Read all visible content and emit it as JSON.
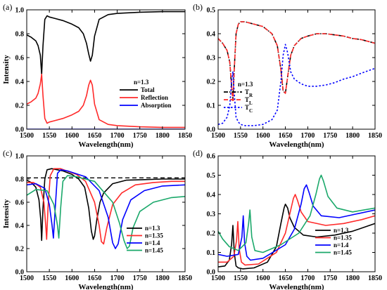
{
  "chart_data": [
    {
      "panel": "(a)",
      "type": "line",
      "xlabel": "Wavelength(nm)",
      "ylabel": "Intensity",
      "xlim": [
        1500,
        1850
      ],
      "ylim": [
        0,
        1.0
      ],
      "xticks": [
        1500,
        1550,
        1600,
        1650,
        1700,
        1750,
        1800,
        1850
      ],
      "yticks": [
        0,
        0.2,
        0.4,
        0.6,
        0.8,
        1.0
      ],
      "tick_labels_y": [
        "0.0",
        "0.2",
        "0.4",
        "0.6",
        "0.8",
        "1.0"
      ],
      "legend_title": "n=1.3",
      "legend_position": "right",
      "series": [
        {
          "name": "Total",
          "color": "#000000",
          "dash": "solid",
          "x": [
            1500,
            1510,
            1520,
            1525,
            1530,
            1533,
            1536,
            1540,
            1545,
            1550,
            1560,
            1580,
            1600,
            1615,
            1625,
            1632,
            1637,
            1641,
            1645,
            1650,
            1660,
            1680,
            1700,
            1750,
            1800,
            1850
          ],
          "y": [
            0.79,
            0.77,
            0.74,
            0.7,
            0.62,
            0.46,
            0.7,
            0.92,
            0.95,
            0.94,
            0.93,
            0.91,
            0.88,
            0.85,
            0.8,
            0.72,
            0.63,
            0.57,
            0.62,
            0.78,
            0.92,
            0.96,
            0.97,
            0.98,
            0.985,
            0.985
          ]
        },
        {
          "name": "Reflection",
          "color": "#ff2a2a",
          "dash": "solid",
          "x": [
            1500,
            1510,
            1520,
            1525,
            1530,
            1533,
            1536,
            1540,
            1545,
            1550,
            1560,
            1580,
            1600,
            1615,
            1625,
            1632,
            1637,
            1641,
            1645,
            1650,
            1660,
            1680,
            1700,
            1750,
            1800,
            1850
          ],
          "y": [
            0.21,
            0.23,
            0.26,
            0.3,
            0.38,
            0.46,
            0.28,
            0.09,
            0.05,
            0.06,
            0.07,
            0.09,
            0.12,
            0.15,
            0.2,
            0.28,
            0.37,
            0.41,
            0.37,
            0.21,
            0.08,
            0.04,
            0.03,
            0.02,
            0.015,
            0.015
          ]
        },
        {
          "name": "Absorption",
          "color": "#0000ff",
          "dash": "solid",
          "x": [
            1500,
            1850
          ],
          "y": [
            0.0,
            0.0
          ]
        }
      ]
    },
    {
      "panel": "(b)",
      "type": "line",
      "xlabel": "Wavelength(nm)",
      "ylabel": "",
      "xlim": [
        1500,
        1850
      ],
      "ylim": [
        0,
        0.5
      ],
      "xticks": [
        1500,
        1550,
        1600,
        1650,
        1700,
        1750,
        1800,
        1850
      ],
      "yticks": [
        0,
        0.1,
        0.2,
        0.3,
        0.4,
        0.5
      ],
      "tick_labels_y": [
        "0.0",
        "0.1",
        "0.2",
        "0.3",
        "0.4",
        "0.5"
      ],
      "legend_title": "n=1.3",
      "legend_position": "bottom-left",
      "series": [
        {
          "name": "T",
          "sub": "R",
          "color": "#000000",
          "dash": "dashdot",
          "x": [
            1500,
            1510,
            1520,
            1526,
            1530,
            1533,
            1536,
            1540,
            1545,
            1550,
            1560,
            1580,
            1600,
            1620,
            1632,
            1640,
            1645,
            1650,
            1655,
            1662,
            1670,
            1685,
            1700,
            1720,
            1740,
            1760,
            1780,
            1800,
            1820,
            1850
          ],
          "y": [
            0.38,
            0.36,
            0.33,
            0.28,
            0.18,
            0.12,
            0.25,
            0.4,
            0.44,
            0.45,
            0.45,
            0.44,
            0.43,
            0.4,
            0.35,
            0.25,
            0.16,
            0.15,
            0.22,
            0.31,
            0.35,
            0.38,
            0.39,
            0.4,
            0.4,
            0.395,
            0.39,
            0.38,
            0.375,
            0.36
          ]
        },
        {
          "name": "T",
          "sub": "L",
          "color": "#ff2a2a",
          "dash": "dashed",
          "x": [
            1500,
            1510,
            1520,
            1526,
            1530,
            1533,
            1536,
            1540,
            1545,
            1550,
            1560,
            1580,
            1600,
            1620,
            1632,
            1640,
            1645,
            1650,
            1655,
            1662,
            1670,
            1685,
            1700,
            1720,
            1740,
            1760,
            1780,
            1800,
            1820,
            1850
          ],
          "y": [
            0.38,
            0.36,
            0.33,
            0.28,
            0.18,
            0.12,
            0.25,
            0.4,
            0.44,
            0.45,
            0.45,
            0.44,
            0.43,
            0.4,
            0.35,
            0.25,
            0.16,
            0.15,
            0.22,
            0.31,
            0.35,
            0.38,
            0.39,
            0.4,
            0.4,
            0.395,
            0.39,
            0.38,
            0.375,
            0.36
          ]
        },
        {
          "name": "T",
          "sub": "C",
          "color": "#0000ff",
          "dash": "dotted",
          "x": [
            1500,
            1510,
            1520,
            1526,
            1530,
            1533,
            1536,
            1540,
            1545,
            1550,
            1560,
            1580,
            1600,
            1620,
            1632,
            1640,
            1645,
            1650,
            1655,
            1662,
            1670,
            1685,
            1700,
            1720,
            1740,
            1760,
            1780,
            1800,
            1820,
            1850
          ],
          "y": [
            0.02,
            0.025,
            0.05,
            0.1,
            0.2,
            0.24,
            0.15,
            0.05,
            0.03,
            0.02,
            0.015,
            0.015,
            0.02,
            0.04,
            0.08,
            0.2,
            0.31,
            0.355,
            0.32,
            0.24,
            0.21,
            0.19,
            0.18,
            0.18,
            0.185,
            0.195,
            0.21,
            0.22,
            0.235,
            0.255
          ]
        }
      ]
    },
    {
      "panel": "(c)",
      "type": "line",
      "xlabel": "Wavelength(nm)",
      "ylabel": "Intensity",
      "xlim": [
        1500,
        1850
      ],
      "ylim": [
        0,
        1.0
      ],
      "xticks": [
        1500,
        1550,
        1600,
        1650,
        1700,
        1750,
        1800,
        1850
      ],
      "yticks": [
        0,
        0.2,
        0.4,
        0.6,
        0.8,
        1.0
      ],
      "tick_labels_y": [
        "0.0",
        "0.2",
        "0.4",
        "0.6",
        "0.8",
        "1.0"
      ],
      "reference_line": {
        "y": 0.81,
        "color": "#000000",
        "dash": "dashed"
      },
      "legend_position": "bottom-center",
      "series": [
        {
          "name": "n=1.3",
          "color": "#000000",
          "dash": "solid",
          "x": [
            1500,
            1510,
            1520,
            1527,
            1531,
            1533,
            1536,
            1540,
            1545,
            1555,
            1580,
            1600,
            1615,
            1628,
            1637,
            1643,
            1647,
            1650,
            1655,
            1662,
            1670,
            1690,
            1720,
            1760,
            1800,
            1850
          ],
          "y": [
            0.79,
            0.77,
            0.73,
            0.62,
            0.45,
            0.27,
            0.55,
            0.8,
            0.88,
            0.89,
            0.87,
            0.84,
            0.8,
            0.73,
            0.55,
            0.35,
            0.28,
            0.31,
            0.45,
            0.6,
            0.68,
            0.76,
            0.79,
            0.795,
            0.8,
            0.8
          ]
        },
        {
          "name": "n=1.35",
          "color": "#ff2a2a",
          "dash": "solid",
          "x": [
            1500,
            1515,
            1530,
            1538,
            1542,
            1544,
            1547,
            1552,
            1560,
            1575,
            1610,
            1630,
            1650,
            1660,
            1665,
            1670,
            1677,
            1690,
            1710,
            1740,
            1780,
            1820,
            1850
          ],
          "y": [
            0.77,
            0.77,
            0.73,
            0.6,
            0.4,
            0.28,
            0.55,
            0.83,
            0.89,
            0.89,
            0.84,
            0.78,
            0.6,
            0.4,
            0.26,
            0.24,
            0.38,
            0.58,
            0.68,
            0.75,
            0.77,
            0.78,
            0.78
          ]
        },
        {
          "name": "n=1.4",
          "color": "#0000ff",
          "dash": "solid",
          "x": [
            1500,
            1520,
            1540,
            1550,
            1556,
            1559,
            1563,
            1568,
            1575,
            1590,
            1630,
            1660,
            1680,
            1690,
            1696,
            1702,
            1712,
            1730,
            1760,
            1800,
            1850
          ],
          "y": [
            0.75,
            0.76,
            0.72,
            0.58,
            0.4,
            0.29,
            0.55,
            0.85,
            0.88,
            0.87,
            0.82,
            0.7,
            0.47,
            0.25,
            0.2,
            0.24,
            0.45,
            0.62,
            0.7,
            0.74,
            0.75
          ]
        },
        {
          "name": "n=1.45",
          "color": "#1aa86a",
          "dash": "solid",
          "x": [
            1500,
            1520,
            1545,
            1560,
            1568,
            1571,
            1575,
            1580,
            1590,
            1610,
            1650,
            1690,
            1705,
            1715,
            1722,
            1727,
            1735,
            1750,
            1780,
            1820,
            1850
          ],
          "y": [
            0.66,
            0.71,
            0.7,
            0.58,
            0.4,
            0.29,
            0.55,
            0.78,
            0.83,
            0.82,
            0.78,
            0.6,
            0.42,
            0.27,
            0.2,
            0.22,
            0.38,
            0.52,
            0.6,
            0.64,
            0.65
          ]
        }
      ]
    },
    {
      "panel": "(d)",
      "type": "line",
      "xlabel": "Wavelength(nm)",
      "ylabel": "",
      "xlim": [
        1500,
        1850
      ],
      "ylim": [
        0,
        0.6
      ],
      "xticks": [
        1500,
        1550,
        1600,
        1650,
        1700,
        1750,
        1800,
        1850
      ],
      "yticks": [
        0,
        0.1,
        0.2,
        0.3,
        0.4,
        0.5,
        0.6
      ],
      "tick_labels_y": [
        "0.0",
        "0.1",
        "0.2",
        "0.3",
        "0.4",
        "0.5",
        "0.6"
      ],
      "legend_position": "bottom-center",
      "series": [
        {
          "name": "n=1.3",
          "color": "#000000",
          "dash": "solid",
          "x": [
            1500,
            1515,
            1525,
            1530,
            1533,
            1536,
            1540,
            1545,
            1555,
            1580,
            1610,
            1630,
            1640,
            1647,
            1650,
            1655,
            1660,
            1670,
            1690,
            1720,
            1760,
            1800,
            1850
          ],
          "y": [
            0.025,
            0.03,
            0.06,
            0.14,
            0.24,
            0.1,
            0.03,
            0.02,
            0.015,
            0.02,
            0.05,
            0.13,
            0.25,
            0.33,
            0.35,
            0.33,
            0.28,
            0.23,
            0.19,
            0.18,
            0.19,
            0.21,
            0.25
          ]
        },
        {
          "name": "n=1.35",
          "color": "#ff2a2a",
          "dash": "solid",
          "x": [
            1500,
            1520,
            1535,
            1541,
            1544,
            1547,
            1552,
            1560,
            1590,
            1630,
            1650,
            1660,
            1668,
            1672,
            1677,
            1685,
            1700,
            1740,
            1780,
            1820,
            1850
          ],
          "y": [
            0.05,
            0.05,
            0.08,
            0.16,
            0.26,
            0.12,
            0.05,
            0.035,
            0.04,
            0.1,
            0.2,
            0.3,
            0.38,
            0.4,
            0.37,
            0.31,
            0.26,
            0.24,
            0.25,
            0.27,
            0.29
          ]
        },
        {
          "name": "n=1.4",
          "color": "#0000ff",
          "dash": "solid",
          "x": [
            1500,
            1520,
            1545,
            1553,
            1556,
            1559,
            1564,
            1572,
            1600,
            1650,
            1670,
            1685,
            1692,
            1697,
            1703,
            1712,
            1730,
            1770,
            1810,
            1850
          ],
          "y": [
            0.09,
            0.08,
            0.09,
            0.18,
            0.29,
            0.15,
            0.08,
            0.06,
            0.07,
            0.14,
            0.22,
            0.35,
            0.43,
            0.45,
            0.41,
            0.34,
            0.29,
            0.28,
            0.3,
            0.32
          ]
        },
        {
          "name": "n=1.45",
          "color": "#1aa86a",
          "dash": "solid",
          "x": [
            1500,
            1510,
            1525,
            1545,
            1562,
            1568,
            1571,
            1575,
            1582,
            1600,
            1640,
            1680,
            1705,
            1718,
            1726,
            1730,
            1735,
            1745,
            1765,
            1800,
            1850
          ],
          "y": [
            0.21,
            0.17,
            0.13,
            0.11,
            0.15,
            0.25,
            0.32,
            0.18,
            0.11,
            0.1,
            0.14,
            0.2,
            0.29,
            0.4,
            0.48,
            0.5,
            0.47,
            0.39,
            0.33,
            0.31,
            0.33
          ]
        }
      ]
    }
  ]
}
